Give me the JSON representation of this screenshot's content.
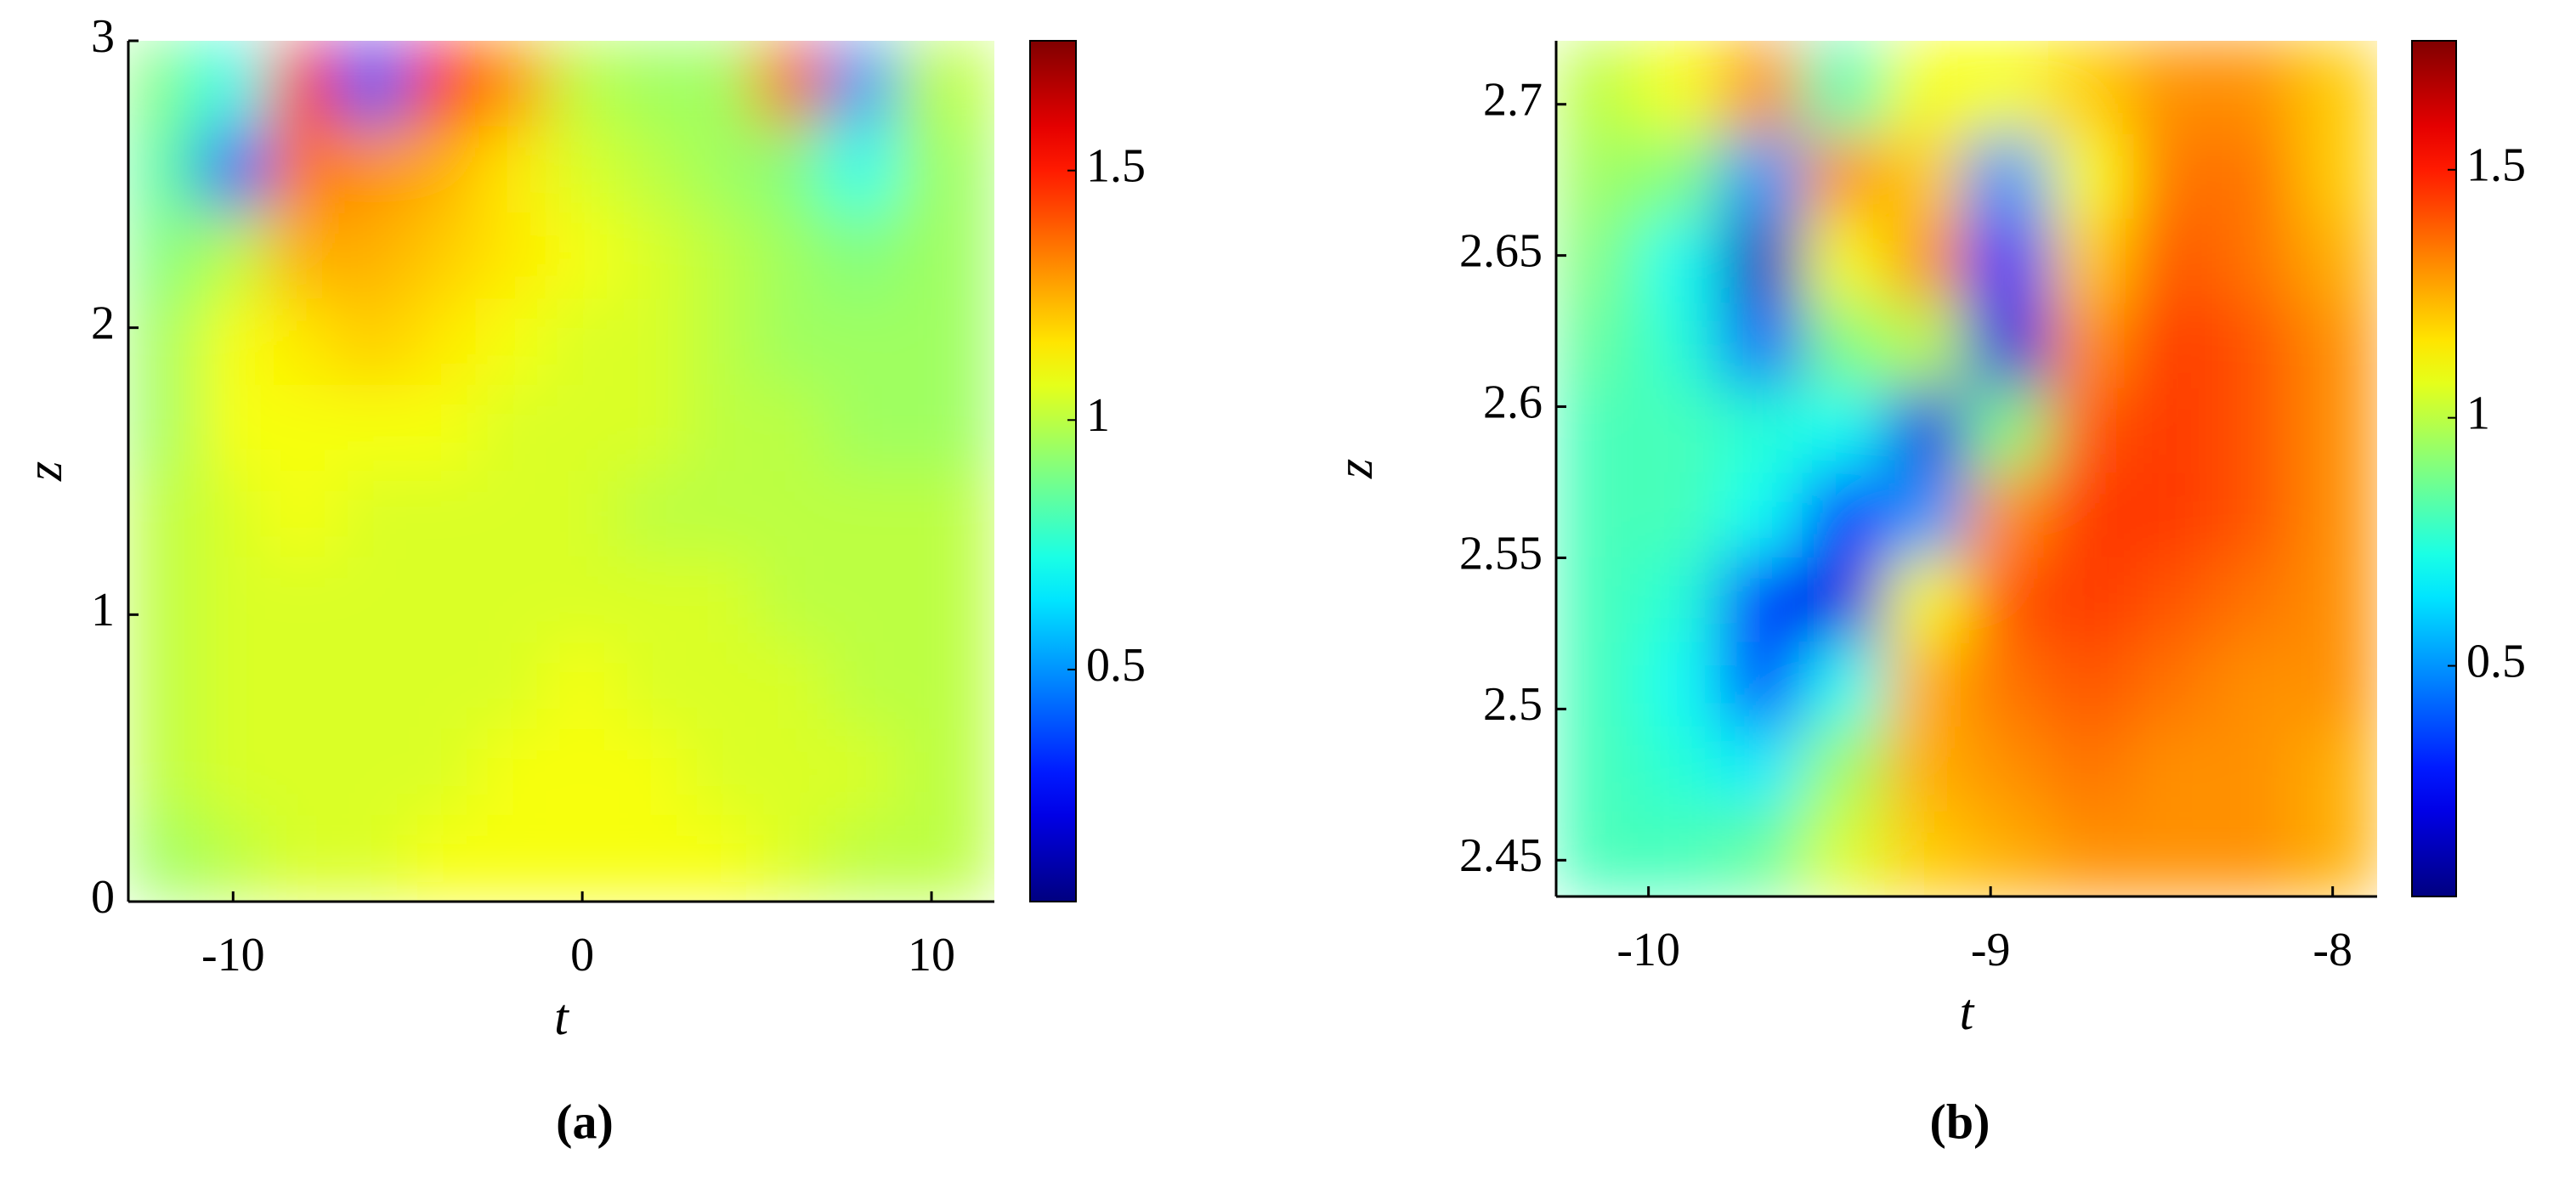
{
  "chart_data": [
    {
      "type": "heatmap",
      "colormap": "jet",
      "caption": "(a)",
      "x_label": "t",
      "y_label": "z",
      "xlim": [
        -13,
        11.8
      ],
      "ylim": [
        0,
        3
      ],
      "xticks": [
        -10,
        0,
        10
      ],
      "yticks": [
        0,
        1,
        2,
        3
      ],
      "clim": [
        0.035,
        1.76
      ],
      "cticks": [
        0.5,
        1,
        1.5
      ],
      "x": [
        -12,
        -10,
        -8,
        -6,
        -4,
        -2,
        0,
        2,
        4,
        6,
        8,
        10
      ],
      "y": [
        2.85,
        2.55,
        2.25,
        1.95,
        1.65,
        1.35,
        1.05,
        0.75,
        0.45,
        0.15
      ],
      "values": [
        [
          0.9,
          0.7,
          1.5,
          0.4,
          1.5,
          1.3,
          1.0,
          0.95,
          0.95,
          1.4,
          0.5,
          1.0
        ],
        [
          0.85,
          0.4,
          1.35,
          1.3,
          1.25,
          1.15,
          1.05,
          1.0,
          0.95,
          0.9,
          0.7,
          0.95
        ],
        [
          0.9,
          1.0,
          1.25,
          1.25,
          1.2,
          1.15,
          1.1,
          1.05,
          1.0,
          0.95,
          0.9,
          0.95
        ],
        [
          0.95,
          1.1,
          1.15,
          1.2,
          1.15,
          1.1,
          1.05,
          1.05,
          1.0,
          0.95,
          0.95,
          0.95
        ],
        [
          0.95,
          1.1,
          1.1,
          1.1,
          1.1,
          1.05,
          1.05,
          1.05,
          1.0,
          1.0,
          0.95,
          0.95
        ],
        [
          1.0,
          1.05,
          1.1,
          1.05,
          1.05,
          1.05,
          1.05,
          1.0,
          1.0,
          1.0,
          1.0,
          1.0
        ],
        [
          1.0,
          1.05,
          1.05,
          1.05,
          1.05,
          1.05,
          1.05,
          1.05,
          1.05,
          1.0,
          1.0,
          1.0
        ],
        [
          1.0,
          1.05,
          1.05,
          1.05,
          1.05,
          1.05,
          1.1,
          1.05,
          1.05,
          1.05,
          1.0,
          1.0
        ],
        [
          1.0,
          1.05,
          1.05,
          1.05,
          1.05,
          1.1,
          1.1,
          1.1,
          1.05,
          1.05,
          1.05,
          1.0
        ],
        [
          0.95,
          1.0,
          1.05,
          1.05,
          1.1,
          1.1,
          1.1,
          1.1,
          1.1,
          1.05,
          1.0,
          1.0
        ]
      ]
    },
    {
      "type": "heatmap",
      "colormap": "jet",
      "caption": "(b)",
      "x_label": "t",
      "y_label": "z",
      "xlim": [
        -10.27,
        -7.87
      ],
      "ylim": [
        2.438,
        2.721
      ],
      "xticks": [
        -10,
        -9,
        -8
      ],
      "yticks": [
        2.45,
        2.5,
        2.55,
        2.6,
        2.65,
        2.7
      ],
      "clim": [
        0.035,
        1.76
      ],
      "cticks": [
        0.5,
        1,
        1.5
      ],
      "x": [
        -10.15,
        -9.91,
        -9.67,
        -9.43,
        -9.19,
        -8.95,
        -8.71,
        -8.47,
        -8.23,
        -7.99
      ],
      "y": [
        2.704,
        2.676,
        2.648,
        2.62,
        2.592,
        2.564,
        2.536,
        2.508,
        2.48,
        2.452
      ],
      "values": [
        [
          1.0,
          1.1,
          1.3,
          0.8,
          1.1,
          1.1,
          1.2,
          1.3,
          1.3,
          1.2
        ],
        [
          0.95,
          0.9,
          0.5,
          1.3,
          1.2,
          0.5,
          1.1,
          1.35,
          1.35,
          1.2
        ],
        [
          0.9,
          0.7,
          0.15,
          1.1,
          1.3,
          0.3,
          1.2,
          1.4,
          1.35,
          1.25
        ],
        [
          0.85,
          0.75,
          0.4,
          0.9,
          1.0,
          0.2,
          1.3,
          1.45,
          1.4,
          1.3
        ],
        [
          0.8,
          0.8,
          0.75,
          0.7,
          0.2,
          0.9,
          1.4,
          1.45,
          1.4,
          1.3
        ],
        [
          0.8,
          0.8,
          0.7,
          0.3,
          0.5,
          1.3,
          1.45,
          1.45,
          1.4,
          1.3
        ],
        [
          0.8,
          0.75,
          0.3,
          0.2,
          1.1,
          1.4,
          1.45,
          1.4,
          1.35,
          1.3
        ],
        [
          0.8,
          0.7,
          0.35,
          0.7,
          1.25,
          1.35,
          1.4,
          1.35,
          1.3,
          1.3
        ],
        [
          0.8,
          0.75,
          0.65,
          0.95,
          1.25,
          1.3,
          1.35,
          1.3,
          1.3,
          1.25
        ],
        [
          0.8,
          0.8,
          0.85,
          1.05,
          1.2,
          1.25,
          1.3,
          1.3,
          1.3,
          1.25
        ]
      ]
    }
  ]
}
